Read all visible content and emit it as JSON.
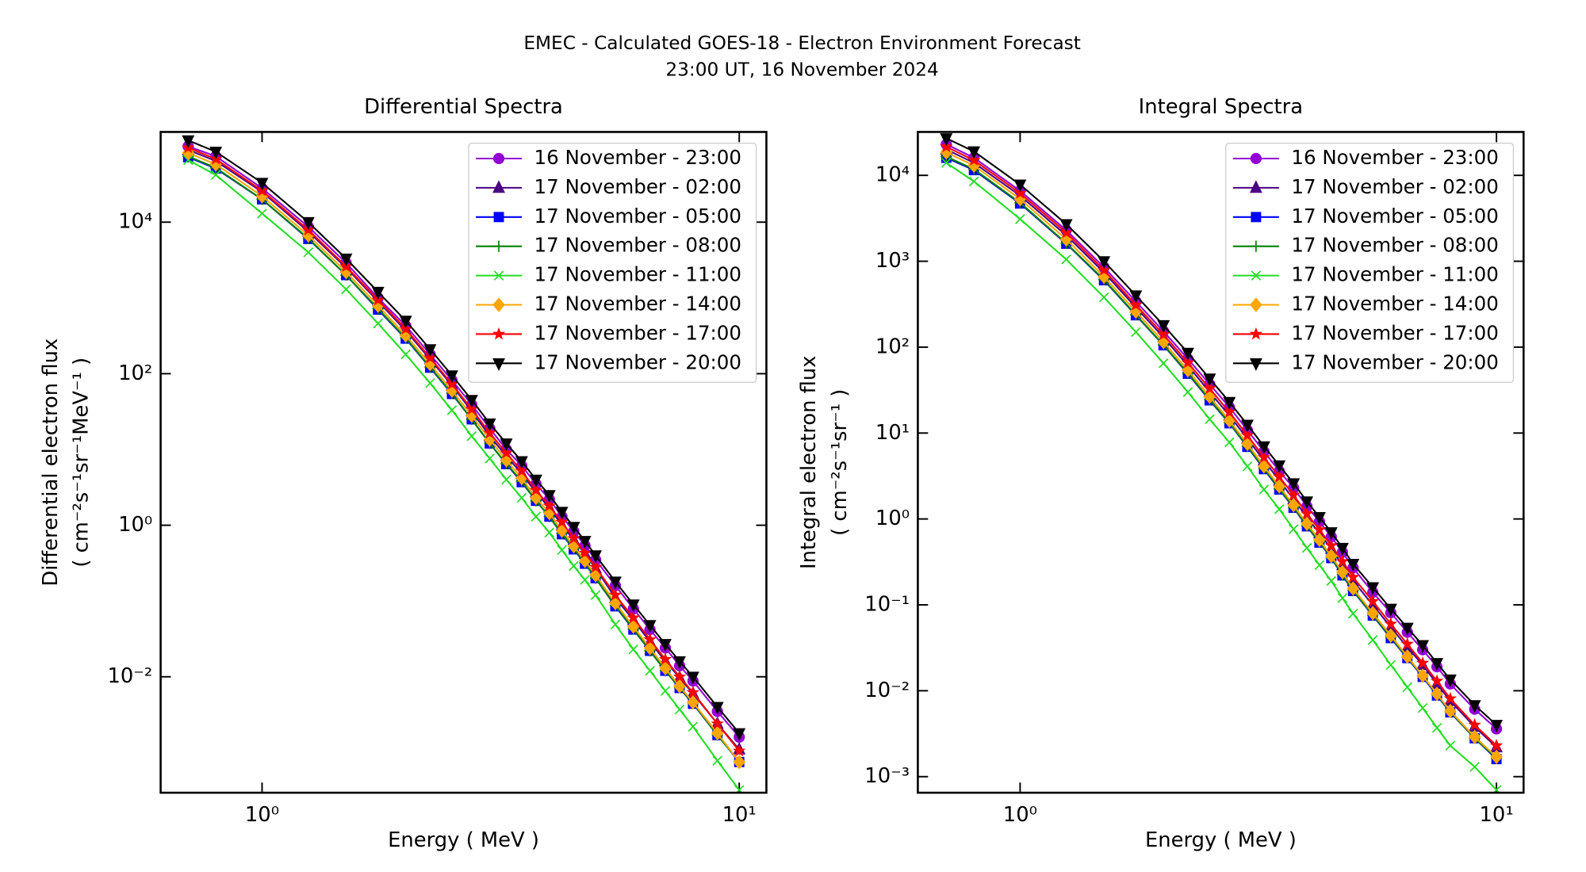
{
  "title": [
    "EMEC - Calculated GOES-18 - Electron Environment Forecast",
    "23:00 UT, 16 November 2024"
  ],
  "chart_data": [
    {
      "type": "line",
      "title": "Differential Spectra",
      "xlabel": "Energy ( MeV )",
      "ylabel": [
        "Differential electron flux",
        "( cm⁻²s⁻¹sr⁻¹MeV⁻¹ )"
      ],
      "xscale": "log",
      "yscale": "log",
      "legend": "upper right",
      "xlim": [
        0.613,
        11.4
      ],
      "ylim": [
        0.000295,
        155000
      ],
      "xticks": [
        {
          "value": 1,
          "label": "10⁰"
        },
        {
          "value": 10,
          "label": "10¹"
        }
      ],
      "yticks": [
        {
          "value": 0.01,
          "label": "10⁻²"
        },
        {
          "value": 1,
          "label": "10⁰"
        },
        {
          "value": 100,
          "label": "10²"
        },
        {
          "value": 10000,
          "label": "10⁴"
        }
      ],
      "x": [
        0.7,
        0.8,
        1,
        1.25,
        1.5,
        1.75,
        2,
        2.25,
        2.5,
        2.75,
        3,
        3.25,
        3.5,
        3.75,
        4,
        4.25,
        4.5,
        4.75,
        5,
        5.5,
        6,
        6.5,
        7,
        7.5,
        8,
        9,
        10
      ],
      "series": [
        {
          "name": "16 November - 23:00",
          "color": "#9400d3",
          "marker": "o",
          "values": [
            100000,
            74000,
            28000,
            8700,
            2900,
            1000,
            430,
            180,
            82,
            39,
            19,
            10,
            6.1,
            3.5,
            2.2,
            1.3,
            0.83,
            0.54,
            0.35,
            0.16,
            0.079,
            0.042,
            0.024,
            0.014,
            0.0088,
            0.0035,
            0.0016
          ]
        },
        {
          "name": "17 November - 02:00",
          "color": "#4b0082",
          "marker": "^",
          "values": [
            90000,
            64000,
            25000,
            7500,
            2500,
            900,
            370,
            155,
            70,
            32,
            15,
            8.2,
            4.8,
            2.7,
            1.7,
            1.0,
            0.64,
            0.42,
            0.27,
            0.11,
            0.056,
            0.029,
            0.016,
            0.0097,
            0.006,
            0.0024,
            0.0011
          ]
        },
        {
          "name": "17 November - 05:00",
          "color": "#0000ff",
          "marker": "s",
          "values": [
            72000,
            51000,
            20000,
            6000,
            2000,
            700,
            290,
            120,
            54,
            25,
            12,
            6.4,
            3.7,
            2.1,
            1.3,
            0.76,
            0.48,
            0.31,
            0.2,
            0.085,
            0.042,
            0.022,
            0.012,
            0.0071,
            0.0044,
            0.0017,
            0.00075
          ]
        },
        {
          "name": "17 November - 08:00",
          "color": "#008000",
          "marker": "+",
          "values": [
            74000,
            52000,
            20000,
            6100,
            2000,
            720,
            295,
            122,
            55,
            25,
            12,
            6.5,
            3.8,
            2.1,
            1.3,
            0.78,
            0.49,
            0.32,
            0.2,
            0.087,
            0.043,
            0.022,
            0.012,
            0.0072,
            0.0045,
            0.0017,
            0.00076
          ]
        },
        {
          "name": "17 November - 11:00",
          "color": "#22dd22",
          "marker": "x",
          "values": [
            66000,
            42000,
            13000,
            4000,
            1300,
            460,
            180,
            75,
            33,
            15,
            7.6,
            4,
            2.3,
            1.3,
            0.8,
            0.47,
            0.29,
            0.19,
            0.12,
            0.049,
            0.023,
            0.012,
            0.0065,
            0.0037,
            0.0022,
            0.00078,
            0.00032
          ]
        },
        {
          "name": "17 November - 14:00",
          "color": "#ffa500",
          "marker": "D",
          "values": [
            82000,
            58000,
            22000,
            6700,
            2200,
            790,
            320,
            134,
            60,
            28,
            13.5,
            7.2,
            4.2,
            2.3,
            1.45,
            0.85,
            0.53,
            0.34,
            0.22,
            0.094,
            0.046,
            0.024,
            0.013,
            0.0075,
            0.0046,
            0.0018,
            0.00075
          ]
        },
        {
          "name": "17 November - 17:00",
          "color": "#ff0000",
          "marker": "*",
          "values": [
            96000,
            68000,
            26000,
            7900,
            2600,
            940,
            390,
            162,
            73,
            34,
            16.5,
            9,
            5.2,
            2.9,
            1.8,
            1.1,
            0.67,
            0.43,
            0.28,
            0.12,
            0.06,
            0.031,
            0.017,
            0.01,
            0.0062,
            0.0024,
            0.00105
          ]
        },
        {
          "name": "17 November - 20:00",
          "color": "#000000",
          "marker": "v",
          "values": [
            120000,
            85000,
            33000,
            10000,
            3300,
            1200,
            500,
            210,
            95,
            45,
            22,
            12,
            7,
            4,
            2.5,
            1.5,
            0.95,
            0.62,
            0.4,
            0.18,
            0.09,
            0.048,
            0.027,
            0.016,
            0.01,
            0.004,
            0.0018
          ]
        }
      ]
    },
    {
      "type": "line",
      "title": "Integral Spectra",
      "xlabel": "Energy ( MeV )",
      "ylabel": [
        "Integral electron flux",
        "( cm⁻²s⁻¹sr⁻¹ )"
      ],
      "xscale": "log",
      "yscale": "log",
      "legend": "upper right",
      "xlim": [
        0.61,
        11.4
      ],
      "ylim": [
        0.00065,
        32000
      ],
      "xticks": [
        {
          "value": 1,
          "label": "10⁰"
        },
        {
          "value": 10,
          "label": "10¹"
        }
      ],
      "yticks": [
        {
          "value": 0.001,
          "label": "10⁻³"
        },
        {
          "value": 0.01,
          "label": "10⁻²"
        },
        {
          "value": 0.1,
          "label": "10⁻¹"
        },
        {
          "value": 1,
          "label": "10⁰"
        },
        {
          "value": 10,
          "label": "10¹"
        },
        {
          "value": 100,
          "label": "10²"
        },
        {
          "value": 1000,
          "label": "10³"
        },
        {
          "value": 10000,
          "label": "10⁴"
        }
      ],
      "x": [
        0.7,
        0.8,
        1,
        1.25,
        1.5,
        1.75,
        2,
        2.25,
        2.5,
        2.75,
        3,
        3.25,
        3.5,
        3.75,
        4,
        4.25,
        4.5,
        4.75,
        5,
        5.5,
        6,
        6.5,
        7,
        7.5,
        8,
        9,
        10
      ],
      "series": [
        {
          "name": "16 November - 23:00",
          "color": "#9400d3",
          "marker": "o",
          "values": [
            23000,
            16000,
            6600,
            2300,
            850,
            340,
            153,
            73,
            37,
            20,
            10.8,
            6.1,
            3.6,
            2.3,
            1.4,
            0.93,
            0.62,
            0.41,
            0.27,
            0.14,
            0.081,
            0.048,
            0.03,
            0.019,
            0.012,
            0.0061,
            0.0036
          ]
        },
        {
          "name": "17 November - 02:00",
          "color": "#4b0082",
          "marker": "^",
          "values": [
            20000,
            14000,
            5800,
            2000,
            740,
            290,
            130,
            61,
            30,
            16,
            8.6,
            4.8,
            2.8,
            1.7,
            1.05,
            0.68,
            0.45,
            0.29,
            0.19,
            0.1,
            0.055,
            0.032,
            0.02,
            0.012,
            0.0076,
            0.0038,
            0.0022
          ]
        },
        {
          "name": "17 November - 05:00",
          "color": "#0000ff",
          "marker": "s",
          "values": [
            16000,
            11500,
            4700,
            1600,
            600,
            235,
            105,
            49,
            24,
            13,
            6.9,
            3.8,
            2.2,
            1.35,
            0.82,
            0.53,
            0.35,
            0.22,
            0.145,
            0.075,
            0.041,
            0.024,
            0.0145,
            0.0088,
            0.0056,
            0.0028,
            0.0016
          ]
        },
        {
          "name": "17 November - 08:00",
          "color": "#008000",
          "marker": "+",
          "values": [
            16500,
            11800,
            4800,
            1620,
            610,
            238,
            106,
            50,
            24.5,
            13.2,
            7,
            3.9,
            2.25,
            1.37,
            0.83,
            0.54,
            0.355,
            0.225,
            0.147,
            0.076,
            0.042,
            0.0245,
            0.0148,
            0.009,
            0.0057,
            0.0028,
            0.00165
          ]
        },
        {
          "name": "17 November - 11:00",
          "color": "#22dd22",
          "marker": "x",
          "values": [
            14000,
            8500,
            3100,
            1050,
            380,
            150,
            65,
            30,
            14.5,
            7.8,
            4.1,
            2.2,
            1.3,
            0.76,
            0.46,
            0.29,
            0.19,
            0.12,
            0.079,
            0.039,
            0.02,
            0.011,
            0.0063,
            0.0037,
            0.0023,
            0.0013,
            0.0007
          ]
        },
        {
          "name": "17 November - 14:00",
          "color": "#ffa500",
          "marker": "D",
          "values": [
            18500,
            13000,
            5300,
            1800,
            660,
            260,
            115,
            54,
            26.5,
            14,
            7.5,
            4.1,
            2.4,
            1.45,
            0.88,
            0.57,
            0.37,
            0.24,
            0.155,
            0.08,
            0.044,
            0.025,
            0.015,
            0.0092,
            0.0058,
            0.0029,
            0.0017
          ]
        },
        {
          "name": "17 November - 17:00",
          "color": "#ff0000",
          "marker": "*",
          "values": [
            21500,
            15000,
            6200,
            2150,
            790,
            310,
            140,
            66,
            33,
            17.5,
            9.4,
            5.2,
            3.1,
            1.9,
            1.15,
            0.75,
            0.49,
            0.32,
            0.21,
            0.11,
            0.06,
            0.035,
            0.021,
            0.013,
            0.0081,
            0.004,
            0.0023
          ]
        },
        {
          "name": "17 November - 20:00",
          "color": "#000000",
          "marker": "v",
          "values": [
            27000,
            19000,
            7800,
            2700,
            1000,
            400,
            180,
            86,
            43,
            23,
            12.5,
            7,
            4.2,
            2.6,
            1.6,
            1.05,
            0.7,
            0.46,
            0.3,
            0.16,
            0.09,
            0.054,
            0.034,
            0.021,
            0.0135,
            0.0068,
            0.004
          ]
        }
      ]
    }
  ]
}
